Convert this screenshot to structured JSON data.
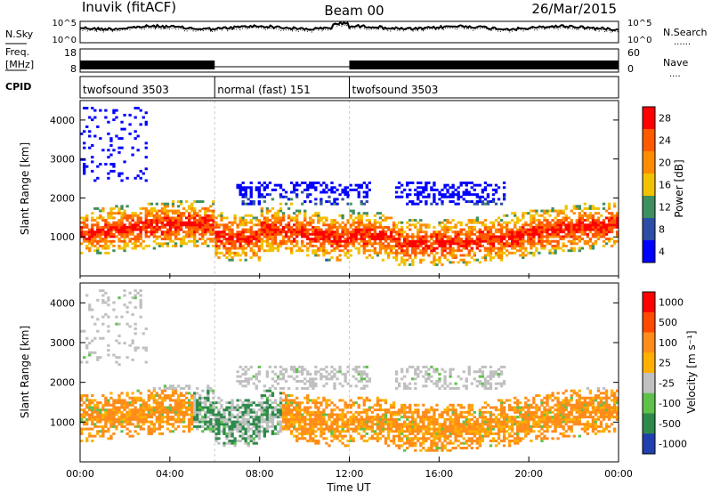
{
  "header": {
    "station": "Inuvik (fitACF)",
    "beam": "Beam 00",
    "date": "26/Mar/2015"
  },
  "noise_panel": {
    "left_label": "N.Sky",
    "right_label": "N.Search",
    "left_ticks": [
      "10^5",
      "10^0"
    ],
    "right_ticks": [
      "10^5",
      "10^0"
    ],
    "line_style_hint": "......"
  },
  "freq_panel": {
    "left_label_1": "Freq.",
    "left_label_2": "[MHz]",
    "right_label": "Nave",
    "left_ticks": [
      "18",
      "8"
    ],
    "right_ticks": [
      "60",
      "0"
    ],
    "line_style_hint": "...."
  },
  "cpid_panel": {
    "label": "CPID",
    "segments": [
      {
        "name": "twofsound 3503",
        "start_hour": 0,
        "end_hour": 6
      },
      {
        "name": "normal (fast) 151",
        "start_hour": 6,
        "end_hour": 12
      },
      {
        "name": "twofsound 3503",
        "start_hour": 12,
        "end_hour": 24
      }
    ]
  },
  "x_axis": {
    "label": "Time UT",
    "tick_labels": [
      "00:00",
      "04:00",
      "08:00",
      "12:00",
      "16:00",
      "20:00",
      "00:00"
    ],
    "range_hours": [
      0,
      24
    ]
  },
  "colors": {
    "power": [
      "#0000ff",
      "#2c4ea6",
      "#3f8f5f",
      "#f2c200",
      "#ff8c00",
      "#ff5a00",
      "#ff0000"
    ],
    "velocity": [
      "#2040b0",
      "#2d8a4a",
      "#5ec24a",
      "#c0c0c0",
      "#ffb000",
      "#ff8c1a",
      "#ff4a00",
      "#ff0000"
    ]
  },
  "chart_data": [
    {
      "type": "heatmap",
      "panel": "power",
      "ylabel": "Slant Range [km]",
      "y_tick_labels": [
        "1000",
        "2000",
        "3000",
        "4000"
      ],
      "ylim": [
        0,
        4500
      ],
      "colorbar_label": "Power [dB]",
      "colorbar_ticks": [
        "28",
        "24",
        "20",
        "16",
        "12",
        "8",
        "4"
      ],
      "colorbar_range": [
        0,
        32
      ]
    },
    {
      "type": "heatmap",
      "panel": "velocity",
      "ylabel": "Slant Range [km]",
      "y_tick_labels": [
        "1000",
        "2000",
        "3000",
        "4000"
      ],
      "ylim": [
        0,
        4500
      ],
      "colorbar_label": "Velocity [m s⁻¹]",
      "colorbar_ticks": [
        "1000",
        "500",
        "100",
        "25",
        "-25",
        "-100",
        "-500",
        "-1000"
      ]
    }
  ]
}
